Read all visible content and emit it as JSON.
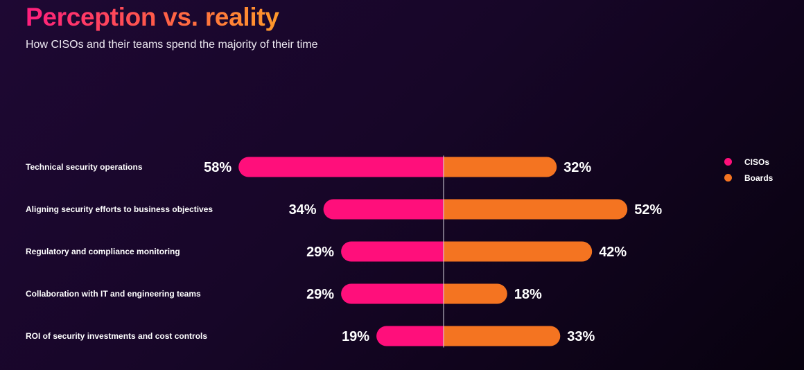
{
  "header": {
    "title": "Perception vs. reality",
    "subtitle": "How CISOs and their teams spend the majority of their time"
  },
  "colors": {
    "cisos": "#ff0f7b",
    "boards": "#f47421",
    "center_line": "#d8d8e0"
  },
  "chart_data": {
    "type": "bar",
    "title": "Perception vs. reality",
    "subtitle": "How CISOs and their teams spend the majority of their time",
    "categories": [
      "Technical security operations",
      "Aligning security efforts to business objectives",
      "Regulatory and compliance monitoring",
      "Collaboration with IT and engineering teams",
      "ROI of security investments and cost controls"
    ],
    "series": [
      {
        "name": "CISOs",
        "values": [
          58,
          34,
          29,
          29,
          19
        ],
        "labels": [
          "58%",
          "34%",
          "29%",
          "29%",
          "19%"
        ]
      },
      {
        "name": "Boards",
        "values": [
          32,
          52,
          42,
          18,
          33
        ],
        "labels": [
          "32%",
          "52%",
          "42%",
          "18%",
          "33%"
        ]
      }
    ],
    "unit": "%",
    "legend_position": "top-right"
  }
}
